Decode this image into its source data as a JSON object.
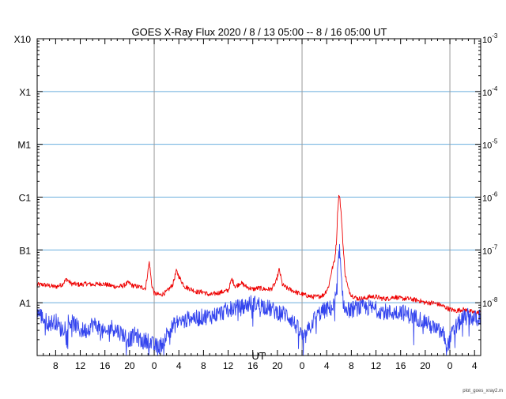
{
  "chart_data": {
    "type": "line",
    "title": "GOES X-Ray Flux   2020  /  8  /  13    05:00 --   8  /  16    05:00    UT",
    "xlabel": "UT",
    "ylabel_left_classes": [
      "X10",
      "X1",
      "M1",
      "C1",
      "B1",
      "A1"
    ],
    "ylabel_right": [
      {
        "base": "10",
        "exp": "-3"
      },
      {
        "base": "10",
        "exp": "-4"
      },
      {
        "base": "10",
        "exp": "-5"
      },
      {
        "base": "10",
        "exp": "-6"
      },
      {
        "base": "10",
        "exp": "-7"
      },
      {
        "base": "10",
        "exp": "-8"
      }
    ],
    "yscale": "log",
    "ylim": [
      1e-09,
      0.001
    ],
    "xlim_hours": [
      0,
      72
    ],
    "x_start": "2020-08-13 05:00 UT",
    "x_end": "2020-08-16 05:00 UT",
    "x_ticks": [
      {
        "h": 3,
        "label": "8"
      },
      {
        "h": 7,
        "label": "12"
      },
      {
        "h": 11,
        "label": "16"
      },
      {
        "h": 15,
        "label": "20"
      },
      {
        "h": 19,
        "label": "0"
      },
      {
        "h": 23,
        "label": "4"
      },
      {
        "h": 27,
        "label": "8"
      },
      {
        "h": 31,
        "label": "12"
      },
      {
        "h": 35,
        "label": "16"
      },
      {
        "h": 39,
        "label": "20"
      },
      {
        "h": 43,
        "label": "0"
      },
      {
        "h": 47,
        "label": "4"
      },
      {
        "h": 51,
        "label": "8"
      },
      {
        "h": 55,
        "label": "12"
      },
      {
        "h": 59,
        "label": "16"
      },
      {
        "h": 63,
        "label": "20"
      },
      {
        "h": 67,
        "label": "0"
      },
      {
        "h": 71,
        "label": "4"
      }
    ],
    "day_boundaries_hours": [
      19,
      43,
      67
    ],
    "horizontal_grid_flux": [
      1e-08,
      1e-07,
      1e-06,
      1e-05,
      0.0001
    ],
    "series": [
      {
        "name": "long channel",
        "color": "#ee0000",
        "points": [
          [
            0,
            2.2e-08
          ],
          [
            1,
            2.2e-08
          ],
          [
            2,
            2.1e-08
          ],
          [
            3,
            2e-08
          ],
          [
            4,
            2.2e-08
          ],
          [
            4.8,
            2.8e-08
          ],
          [
            5.5,
            2.3e-08
          ],
          [
            7,
            2.2e-08
          ],
          [
            8,
            2.3e-08
          ],
          [
            9,
            2.2e-08
          ],
          [
            10.5,
            2.3e-08
          ],
          [
            12,
            2.1e-08
          ],
          [
            13,
            2e-08
          ],
          [
            14,
            2.1e-08
          ],
          [
            14.8,
            2.4e-08
          ],
          [
            15.5,
            2.1e-08
          ],
          [
            16.5,
            2e-08
          ],
          [
            17.6,
            1.9e-08
          ],
          [
            18.2,
            6e-08
          ],
          [
            18.6,
            2.2e-08
          ],
          [
            19,
            1.5e-08
          ],
          [
            20,
            1.4e-08
          ],
          [
            21,
            1.6e-08
          ],
          [
            22,
            2.2e-08
          ],
          [
            22.6,
            4e-08
          ],
          [
            23.3,
            2.7e-08
          ],
          [
            24,
            2e-08
          ],
          [
            25,
            1.8e-08
          ],
          [
            26,
            1.6e-08
          ],
          [
            27,
            1.6e-08
          ],
          [
            28,
            1.4e-08
          ],
          [
            29,
            1.5e-08
          ],
          [
            30,
            1.6e-08
          ],
          [
            31,
            1.7e-08
          ],
          [
            31.6,
            2.8e-08
          ],
          [
            32.2,
            2e-08
          ],
          [
            33,
            2.4e-08
          ],
          [
            34,
            2e-08
          ],
          [
            35,
            1.8e-08
          ],
          [
            36,
            1.9e-08
          ],
          [
            37,
            1.8e-08
          ],
          [
            38,
            1.8e-08
          ],
          [
            38.8,
            2.5e-08
          ],
          [
            39.3,
            4.3e-08
          ],
          [
            39.8,
            2.2e-08
          ],
          [
            40.5,
            1.9e-08
          ],
          [
            41.5,
            1.7e-08
          ],
          [
            42.5,
            1.5e-08
          ],
          [
            43.5,
            1.4e-08
          ],
          [
            44.5,
            1.3e-08
          ],
          [
            45.5,
            1.3e-08
          ],
          [
            46.5,
            1.4e-08
          ],
          [
            47.3,
            2e-08
          ],
          [
            47.8,
            4e-08
          ],
          [
            48.3,
            6.5e-08
          ],
          [
            48.6,
            1.5e-07
          ],
          [
            48.8,
            6e-07
          ],
          [
            49.0,
            1.2e-06
          ],
          [
            49.15,
            9e-07
          ],
          [
            49.4,
            4e-07
          ],
          [
            49.7,
            1e-07
          ],
          [
            50.0,
            3.5e-08
          ],
          [
            50.5,
            1.8e-08
          ],
          [
            51,
            1.4e-08
          ],
          [
            52,
            1.2e-08
          ],
          [
            53,
            1.2e-08
          ],
          [
            54,
            1.3e-08
          ],
          [
            55,
            1.3e-08
          ],
          [
            56,
            1.2e-08
          ],
          [
            57,
            1.2e-08
          ],
          [
            58,
            1.3e-08
          ],
          [
            59,
            1.2e-08
          ],
          [
            60,
            1.2e-08
          ],
          [
            61,
            1.15e-08
          ],
          [
            62,
            1.1e-08
          ],
          [
            63,
            1e-08
          ],
          [
            64,
            1e-08
          ],
          [
            65,
            9.5e-09
          ],
          [
            66,
            8.5e-09
          ],
          [
            67,
            7.5e-09
          ],
          [
            68,
            7e-09
          ],
          [
            69,
            7.5e-09
          ],
          [
            70,
            7e-09
          ],
          [
            71,
            6.5e-09
          ],
          [
            72,
            6.5e-09
          ]
        ]
      },
      {
        "name": "short channel",
        "color": "#3344ee",
        "points": [
          [
            0,
            7e-09
          ],
          [
            1,
            5e-09
          ],
          [
            2,
            4e-09
          ],
          [
            3,
            4.5e-09
          ],
          [
            4,
            3e-09
          ],
          [
            5,
            4.5e-09
          ],
          [
            6,
            4e-09
          ],
          [
            7,
            3e-09
          ],
          [
            8,
            3e-09
          ],
          [
            9,
            4e-09
          ],
          [
            10,
            3.5e-09
          ],
          [
            11,
            2.5e-09
          ],
          [
            12,
            3.5e-09
          ],
          [
            13,
            3e-09
          ],
          [
            14,
            2.5e-09
          ],
          [
            15,
            2e-09
          ],
          [
            16,
            2.5e-09
          ],
          [
            17,
            1.8e-09
          ],
          [
            18,
            2e-09
          ],
          [
            19,
            1.5e-09
          ],
          [
            20,
            1.5e-09
          ],
          [
            21,
            2.5e-09
          ],
          [
            22,
            3.5e-09
          ],
          [
            23,
            4.5e-09
          ],
          [
            24,
            4.5e-09
          ],
          [
            25,
            5.5e-09
          ],
          [
            26,
            5e-09
          ],
          [
            27,
            5.5e-09
          ],
          [
            28,
            5.5e-09
          ],
          [
            29,
            6e-09
          ],
          [
            30,
            6.5e-09
          ],
          [
            31,
            7.5e-09
          ],
          [
            32,
            8e-09
          ],
          [
            33,
            8e-09
          ],
          [
            34,
            9e-09
          ],
          [
            34.8,
            1e-08
          ],
          [
            35.5,
            9.5e-09
          ],
          [
            36.5,
            9e-09
          ],
          [
            37.5,
            8e-09
          ],
          [
            38.5,
            7e-09
          ],
          [
            39.5,
            6.5e-09
          ],
          [
            40.5,
            6e-09
          ],
          [
            41.5,
            4.5e-09
          ],
          [
            42.5,
            3e-09
          ],
          [
            43.3,
            2e-09
          ],
          [
            44,
            3e-09
          ],
          [
            45,
            5e-09
          ],
          [
            46,
            6.5e-09
          ],
          [
            47,
            7.5e-09
          ],
          [
            48,
            8e-09
          ],
          [
            48.6,
            1.5e-08
          ],
          [
            48.9,
            6e-08
          ],
          [
            49.05,
            1.1e-07
          ],
          [
            49.25,
            5e-08
          ],
          [
            49.5,
            1.4e-08
          ],
          [
            50,
            7e-09
          ],
          [
            51,
            7.5e-09
          ],
          [
            52,
            8e-09
          ],
          [
            53,
            8e-09
          ],
          [
            54,
            8e-09
          ],
          [
            55,
            7.5e-09
          ],
          [
            56,
            7e-09
          ],
          [
            57,
            6.5e-09
          ],
          [
            58,
            6.5e-09
          ],
          [
            59,
            7e-09
          ],
          [
            60,
            6e-09
          ],
          [
            61,
            5.5e-09
          ],
          [
            62,
            5e-09
          ],
          [
            63,
            4.5e-09
          ],
          [
            64,
            3.5e-09
          ],
          [
            65,
            3e-09
          ],
          [
            66,
            2.5e-09
          ],
          [
            66.6,
            1.5e-09
          ],
          [
            67.3,
            2.5e-09
          ],
          [
            68,
            3.5e-09
          ],
          [
            69,
            5e-09
          ],
          [
            70,
            5.5e-09
          ],
          [
            71,
            5e-09
          ],
          [
            72,
            5.5e-09
          ]
        ]
      }
    ]
  },
  "footer": {
    "credit": "plot_goes_xray2.m"
  }
}
